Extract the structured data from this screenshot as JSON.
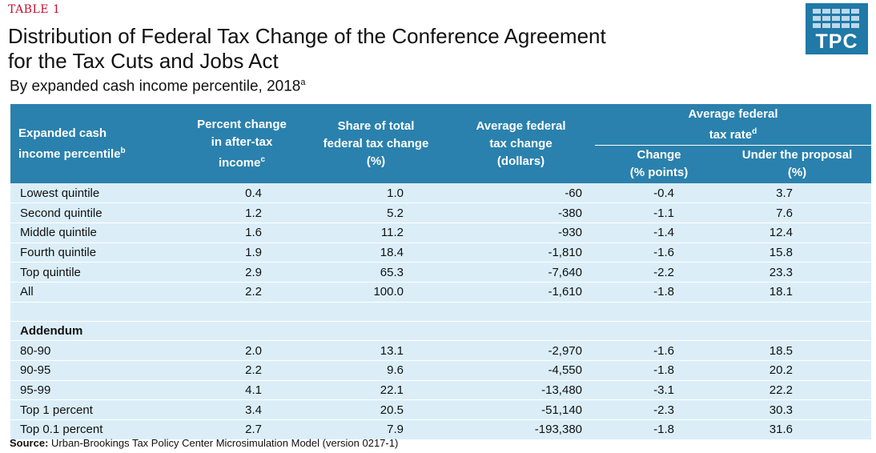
{
  "header": {
    "table_label": "TABLE 1",
    "title_line1": "Distribution of Federal Tax Change of the Conference Agreement",
    "title_line2": "for the Tax Cuts and Jobs Act",
    "subtitle": "By expanded cash income percentile, 2018",
    "subtitle_note": "a"
  },
  "logo": {
    "text": "TPC",
    "color": "#2079a7"
  },
  "columns": {
    "col0_line1": "Expanded cash",
    "col0_line2": "income percentile",
    "col0_note": "b",
    "col1_line1": "Percent change",
    "col1_line2": "in after-tax",
    "col1_line3": "income",
    "col1_note": "c",
    "col2_line1": "Share of total",
    "col2_line2": "federal tax change",
    "col2_line3": "(%)",
    "col3_line1": "Average federal",
    "col3_line2": "tax change",
    "col3_line3": "(dollars)",
    "group_line1": "Average federal",
    "group_line2": "tax rate",
    "group_note": "d",
    "col4_line1": "Change",
    "col4_line2": "(% points)",
    "col5_line1": "Under the proposal",
    "col5_line2": "(%)"
  },
  "rows": [
    {
      "label": "Lowest quintile",
      "pct_change": "0.4",
      "share": "1.0",
      "avg_change": "-60",
      "rate_change": "-0.4",
      "rate_proposal": "3.7"
    },
    {
      "label": "Second quintile",
      "pct_change": "1.2",
      "share": "5.2",
      "avg_change": "-380",
      "rate_change": "-1.1",
      "rate_proposal": "7.6"
    },
    {
      "label": "Middle quintile",
      "pct_change": "1.6",
      "share": "11.2",
      "avg_change": "-930",
      "rate_change": "-1.4",
      "rate_proposal": "12.4"
    },
    {
      "label": "Fourth quintile",
      "pct_change": "1.9",
      "share": "18.4",
      "avg_change": "-1,810",
      "rate_change": "-1.6",
      "rate_proposal": "15.8"
    },
    {
      "label": "Top quintile",
      "pct_change": "2.9",
      "share": "65.3",
      "avg_change": "-7,640",
      "rate_change": "-2.2",
      "rate_proposal": "23.3"
    },
    {
      "label": "All",
      "pct_change": "2.2",
      "share": "100.0",
      "avg_change": "-1,610",
      "rate_change": "-1.8",
      "rate_proposal": "18.1"
    }
  ],
  "addendum": {
    "heading": "Addendum",
    "rows": [
      {
        "label": "80-90",
        "pct_change": "2.0",
        "share": "13.1",
        "avg_change": "-2,970",
        "rate_change": "-1.6",
        "rate_proposal": "18.5"
      },
      {
        "label": "90-95",
        "pct_change": "2.2",
        "share": "9.6",
        "avg_change": "-4,550",
        "rate_change": "-1.8",
        "rate_proposal": "20.2"
      },
      {
        "label": "95-99",
        "pct_change": "4.1",
        "share": "22.1",
        "avg_change": "-13,480",
        "rate_change": "-3.1",
        "rate_proposal": "22.2"
      },
      {
        "label": "Top 1 percent",
        "pct_change": "3.4",
        "share": "20.5",
        "avg_change": "-51,140",
        "rate_change": "-2.3",
        "rate_proposal": "30.3"
      },
      {
        "label": "Top 0.1 percent",
        "pct_change": "2.7",
        "share": "7.9",
        "avg_change": "-193,380",
        "rate_change": "-1.8",
        "rate_proposal": "31.6"
      }
    ]
  },
  "source": {
    "label": "Source:",
    "text": "Urban-Brookings Tax Policy Center Microsimulation Model (version 0217-1)"
  },
  "colors": {
    "header_bg": "#2a81ad",
    "row_bg": "#dbeef8",
    "accent_red": "#c8102e"
  }
}
